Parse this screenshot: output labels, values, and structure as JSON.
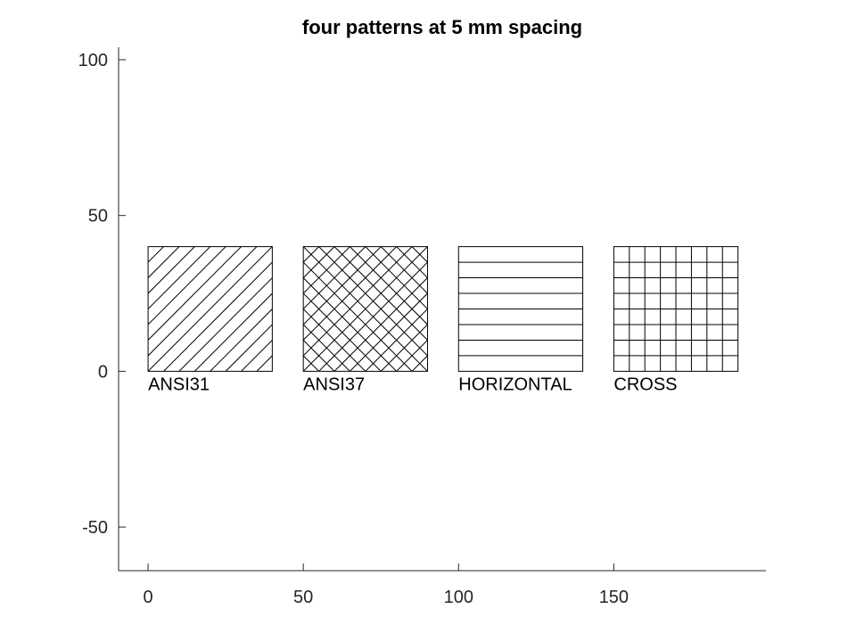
{
  "chart_data": {
    "type": "other",
    "title": "four patterns at 5 mm spacing",
    "xlabel": "",
    "ylabel": "",
    "xlim": [
      -9.5,
      199
    ],
    "ylim": [
      -64,
      104
    ],
    "xticks": [
      0,
      50,
      100,
      150
    ],
    "yticks": [
      -50,
      0,
      50,
      100
    ],
    "grid": false,
    "spacing_mm": 5,
    "patterns": [
      {
        "label": "ANSI31",
        "pattern": "ansi31",
        "x": 0,
        "y": 0,
        "width": 40,
        "height": 40
      },
      {
        "label": "ANSI37",
        "pattern": "ansi37",
        "x": 50,
        "y": 0,
        "width": 40,
        "height": 40
      },
      {
        "label": "HORIZONTAL",
        "pattern": "horizontal",
        "x": 100,
        "y": 0,
        "width": 40,
        "height": 40
      },
      {
        "label": "CROSS",
        "pattern": "cross",
        "x": 150,
        "y": 0,
        "width": 40,
        "height": 40
      }
    ],
    "colors": {
      "axis": "#262626",
      "hatch": "#000000"
    }
  }
}
